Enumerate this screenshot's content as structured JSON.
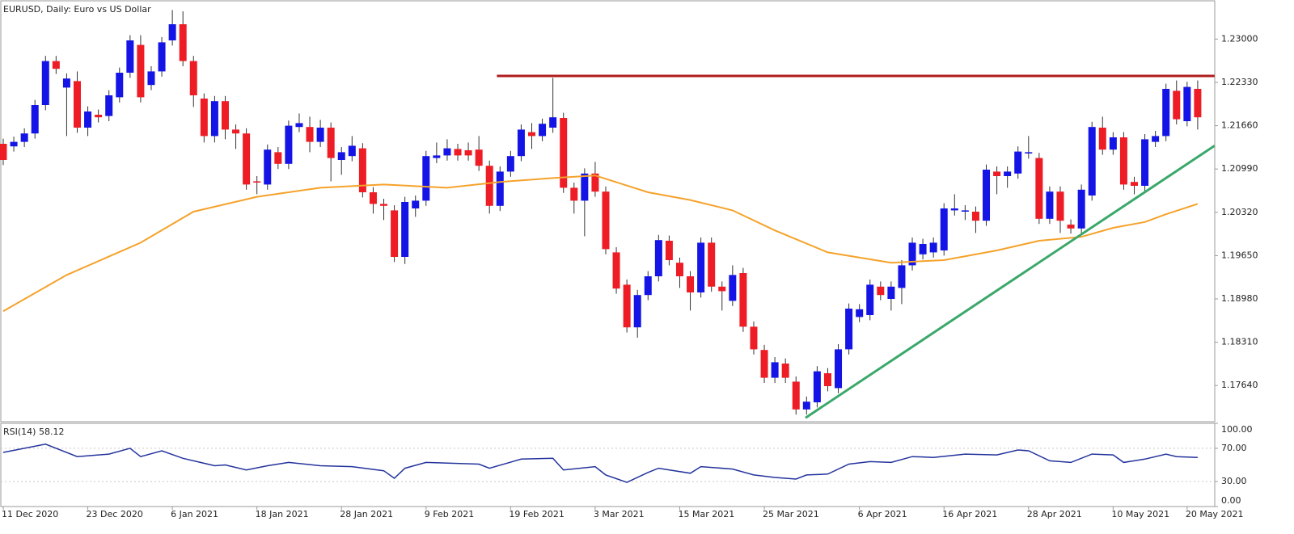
{
  "chart_data": [
    {
      "type": "candlestick",
      "title": "EURUSD, Daily:  Euro vs US Dollar",
      "categories": [
        "11 Dec 2020",
        null,
        null,
        null,
        null,
        null,
        null,
        null,
        "23 Dec 2020",
        null,
        null,
        null,
        null,
        null,
        null,
        null,
        "6 Jan 2021",
        null,
        null,
        null,
        null,
        null,
        null,
        null,
        "18 Jan 2021",
        null,
        null,
        null,
        null,
        null,
        null,
        null,
        "28 Jan 2021",
        null,
        null,
        null,
        null,
        null,
        null,
        null,
        "9 Feb 2021",
        null,
        null,
        null,
        null,
        null,
        null,
        null,
        "19 Feb 2021",
        null,
        null,
        null,
        null,
        null,
        null,
        null,
        "3 Mar 2021",
        null,
        null,
        null,
        null,
        null,
        null,
        null,
        "15 Mar 2021",
        null,
        null,
        null,
        null,
        null,
        null,
        null,
        "25 Mar 2021",
        null,
        null,
        null,
        null,
        null,
        null,
        null,
        null,
        "6 Apr 2021",
        null,
        null,
        null,
        null,
        null,
        null,
        null,
        "16 Apr 2021",
        null,
        null,
        null,
        null,
        null,
        null,
        null,
        "28 Apr 2021",
        null,
        null,
        null,
        null,
        null,
        null,
        null,
        "10 May 2021",
        null,
        null,
        null,
        null,
        null,
        null,
        "20 May 2021",
        null
      ],
      "open": [
        1.2138,
        1.2134,
        1.2141,
        1.2154,
        1.2198,
        1.2266,
        1.2225,
        1.2235,
        1.2163,
        1.2183,
        1.2181,
        1.221,
        1.2248,
        1.2291,
        1.2229,
        1.225,
        1.2298,
        1.2323,
        1.2266,
        1.2208,
        1.215,
        1.2204,
        1.216,
        1.2154,
        1.208,
        1.2075,
        1.2125,
        1.2107,
        1.2164,
        1.2164,
        1.2141,
        1.2163,
        1.2113,
        1.2119,
        1.2131,
        1.2063,
        1.2045,
        1.2035,
        1.1963,
        1.2038,
        1.205,
        1.2116,
        1.212,
        1.213,
        1.2128,
        1.2129,
        1.2104,
        1.2042,
        1.2095,
        1.2119,
        1.2156,
        1.215,
        1.2163,
        1.2178,
        1.207,
        1.205,
        1.2092,
        1.2064,
        1.197,
        1.192,
        1.1854,
        1.1904,
        1.1933,
        1.1988,
        1.1954,
        1.1933,
        1.1908,
        1.1985,
        1.1917,
        1.1895,
        1.1938,
        1.1855,
        1.1819,
        1.1776,
        1.1798,
        1.177,
        1.1727,
        1.1738,
        1.1783,
        1.176,
        1.182,
        1.187,
        1.1873,
        1.1917,
        1.1898,
        1.1915,
        1.195,
        1.1967,
        1.197,
        1.1973,
        1.2035,
        1.2033,
        1.2033,
        1.2019,
        1.2095,
        1.2088,
        1.2092,
        1.2123,
        1.2116,
        1.2022,
        1.2064,
        1.2013,
        1.2007,
        1.2058,
        1.2163,
        1.2129,
        1.2148,
        1.2079,
        1.2073,
        1.2141,
        1.215,
        1.222,
        1.2173,
        1.2223
      ],
      "high": [
        1.2146,
        1.2149,
        1.2162,
        1.2206,
        1.2274,
        1.2274,
        1.2247,
        1.225,
        1.2196,
        1.2191,
        1.2221,
        1.2256,
        1.2306,
        1.2306,
        1.2258,
        1.2303,
        1.2345,
        1.2343,
        1.2274,
        1.2216,
        1.2212,
        1.2212,
        1.2168,
        1.2162,
        1.2088,
        1.2137,
        1.2133,
        1.2174,
        1.2185,
        1.218,
        1.2175,
        1.2171,
        1.2133,
        1.215,
        1.2139,
        1.2071,
        1.2053,
        1.2043,
        1.2056,
        1.2058,
        1.2127,
        1.214,
        1.2145,
        1.2138,
        1.214,
        1.215,
        1.2112,
        1.2103,
        1.2127,
        1.2168,
        1.217,
        1.2177,
        1.224,
        1.2186,
        1.2078,
        1.21,
        1.211,
        1.2072,
        1.1978,
        1.1928,
        1.1912,
        1.1941,
        1.1997,
        1.1996,
        1.1962,
        1.1941,
        1.1993,
        1.1993,
        1.1925,
        1.195,
        1.1946,
        1.1863,
        1.1827,
        1.1808,
        1.1806,
        1.1778,
        1.1747,
        1.1794,
        1.1791,
        1.1828,
        1.1891,
        1.189,
        1.1928,
        1.1925,
        1.1925,
        1.1958,
        1.1993,
        1.1991,
        1.1993,
        1.2046,
        1.206,
        1.2043,
        1.2041,
        1.2106,
        1.2103,
        1.2103,
        1.2134,
        1.215,
        1.2124,
        1.2072,
        1.2072,
        1.2021,
        1.2075,
        1.2172,
        1.218,
        1.2156,
        1.2156,
        1.2087,
        1.2153,
        1.2158,
        1.2231,
        1.2236,
        1.2234,
        1.2236
      ],
      "low": [
        1.2105,
        1.2126,
        1.2133,
        1.2146,
        1.219,
        1.2246,
        1.215,
        1.2155,
        1.215,
        1.2171,
        1.2173,
        1.2202,
        1.224,
        1.2202,
        1.2221,
        1.2242,
        1.229,
        1.2258,
        1.2195,
        1.214,
        1.214,
        1.2145,
        1.213,
        1.2067,
        1.206,
        1.2067,
        1.2099,
        1.2099,
        1.2156,
        1.2125,
        1.2133,
        1.208,
        1.209,
        1.2111,
        1.2055,
        1.203,
        1.202,
        1.1955,
        1.1952,
        1.2025,
        1.2042,
        1.2108,
        1.2112,
        1.2112,
        1.2112,
        1.2096,
        1.203,
        1.2034,
        1.2087,
        1.2111,
        1.213,
        1.2142,
        1.2155,
        1.2062,
        1.203,
        1.1995,
        1.2056,
        1.1967,
        1.1906,
        1.1846,
        1.1838,
        1.1896,
        1.1925,
        1.195,
        1.1915,
        1.188,
        1.19,
        1.1909,
        1.188,
        1.1887,
        1.1847,
        1.1812,
        1.1768,
        1.1768,
        1.1768,
        1.1719,
        1.1719,
        1.173,
        1.1755,
        1.1752,
        1.1812,
        1.1862,
        1.1865,
        1.1896,
        1.188,
        1.189,
        1.1942,
        1.1959,
        1.1962,
        1.1965,
        1.2027,
        1.202,
        1.2,
        1.2011,
        1.206,
        1.207,
        1.2084,
        1.2115,
        1.2014,
        1.2014,
        1.2,
        1.1999,
        1.1999,
        1.205,
        1.2121,
        1.2121,
        1.2067,
        1.206,
        1.2065,
        1.2133,
        1.2142,
        1.2168,
        1.2165,
        1.216
      ],
      "close": [
        1.2113,
        1.2141,
        1.2154,
        1.2198,
        1.2266,
        1.2254,
        1.2239,
        1.2163,
        1.2188,
        1.2179,
        1.2213,
        1.2248,
        1.2298,
        1.221,
        1.225,
        1.2295,
        1.2323,
        1.2266,
        1.2213,
        1.215,
        1.2204,
        1.216,
        1.2154,
        1.2075,
        1.2078,
        1.2129,
        1.2107,
        1.2166,
        1.217,
        1.2141,
        1.2163,
        1.2116,
        1.2125,
        1.2135,
        1.2063,
        1.2045,
        1.2042,
        1.1963,
        1.2048,
        1.205,
        1.2119,
        1.212,
        1.2131,
        1.212,
        1.212,
        1.2104,
        1.2042,
        1.2095,
        1.2119,
        1.216,
        1.215,
        1.2169,
        1.2179,
        1.207,
        1.205,
        1.2092,
        1.2064,
        1.1975,
        1.1914,
        1.1854,
        1.1904,
        1.1933,
        1.1989,
        1.1958,
        1.1933,
        1.1908,
        1.1985,
        1.1917,
        1.191,
        1.1935,
        1.1855,
        1.182,
        1.1776,
        1.18,
        1.1776,
        1.1727,
        1.1739,
        1.1786,
        1.1763,
        1.182,
        1.1883,
        1.1882,
        1.192,
        1.1904,
        1.1917,
        1.195,
        1.1985,
        1.1983,
        1.1985,
        1.2038,
        1.2038,
        1.2035,
        1.2019,
        1.2098,
        1.2088,
        1.2095,
        1.2126,
        1.2125,
        1.2022,
        1.2064,
        1.2019,
        1.2007,
        1.2067,
        1.2164,
        1.2129,
        1.2148,
        1.2075,
        1.2073,
        1.2145,
        1.215,
        1.2223,
        1.2176,
        1.2226,
        1.2179
      ],
      "up_color": "#1414e6",
      "down_color": "#ee1c25",
      "ylim": [
        1.1708,
        1.2358
      ],
      "yticks": [
        {
          "value": 1.23,
          "label": "1.23000"
        },
        {
          "value": 1.2233,
          "label": "1.22330"
        },
        {
          "value": 1.2166,
          "label": "1.21660"
        },
        {
          "value": 1.2099,
          "label": "1.20990"
        },
        {
          "value": 1.2032,
          "label": "1.20320"
        },
        {
          "value": 1.1965,
          "label": "1.19650"
        },
        {
          "value": 1.1898,
          "label": "1.18980"
        },
        {
          "value": 1.1831,
          "label": "1.18310"
        },
        {
          "value": 1.1764,
          "label": "1.17640"
        }
      ],
      "overlays": [
        {
          "color": "#f5a22a",
          "width": 2,
          "x": [
            0,
            6,
            13,
            18,
            24,
            30,
            36,
            42,
            47,
            52,
            56,
            61,
            65,
            69,
            73,
            78,
            84,
            89,
            94,
            98,
            102,
            105,
            108,
            110,
            113
          ],
          "values": [
            1.1879,
            1.1935,
            1.1985,
            1.2033,
            1.2056,
            1.207,
            1.2075,
            1.207,
            1.2079,
            1.2085,
            1.2089,
            1.2063,
            1.2051,
            1.2035,
            1.2004,
            1.197,
            1.1954,
            1.1958,
            1.1973,
            1.1988,
            1.1994,
            1.2008,
            1.2017,
            1.2029,
            1.2045
          ]
        },
        {
          "color": "#b01c1c",
          "width": 3,
          "x": [
            46.7,
            114.6
          ],
          "values": [
            1.2243,
            1.2243
          ]
        },
        {
          "color": "#3aa86a",
          "width": 3,
          "x": [
            75.9,
            114.6
          ],
          "values": [
            1.1714,
            1.2135
          ]
        }
      ]
    },
    {
      "type": "line",
      "title": "RSI(14) 58.12",
      "x": [
        0,
        4,
        7,
        10,
        12,
        13,
        15,
        17,
        20,
        21,
        23,
        25,
        27,
        30,
        33,
        36,
        37,
        38,
        40,
        45,
        46,
        49,
        52,
        53,
        56,
        57,
        59,
        61,
        62,
        65,
        66,
        69,
        71,
        73,
        75,
        76,
        78,
        80,
        82,
        84,
        86,
        88,
        91,
        94,
        96,
        97,
        99,
        101,
        103,
        105,
        106,
        108,
        110,
        111,
        113
      ],
      "values": [
        65,
        75,
        60,
        63,
        70,
        60,
        67,
        58,
        49,
        50,
        44,
        49,
        53,
        49,
        48,
        43,
        34,
        46,
        53,
        51,
        46,
        57,
        58,
        44,
        48,
        38,
        29,
        41,
        46,
        40,
        48,
        45,
        38,
        35,
        33,
        38,
        39,
        51,
        54,
        53,
        60,
        59,
        63,
        62,
        68,
        67,
        55,
        53,
        63,
        62,
        53,
        57,
        63,
        60,
        59
      ],
      "color": "#23339c",
      "ylim": [
        0,
        100
      ],
      "yticks": [
        {
          "value": 100,
          "label": "100.00"
        },
        {
          "value": 70,
          "label": "70.00"
        },
        {
          "value": 30,
          "label": "30.00"
        },
        {
          "value": 0,
          "label": "0.00"
        }
      ]
    }
  ]
}
